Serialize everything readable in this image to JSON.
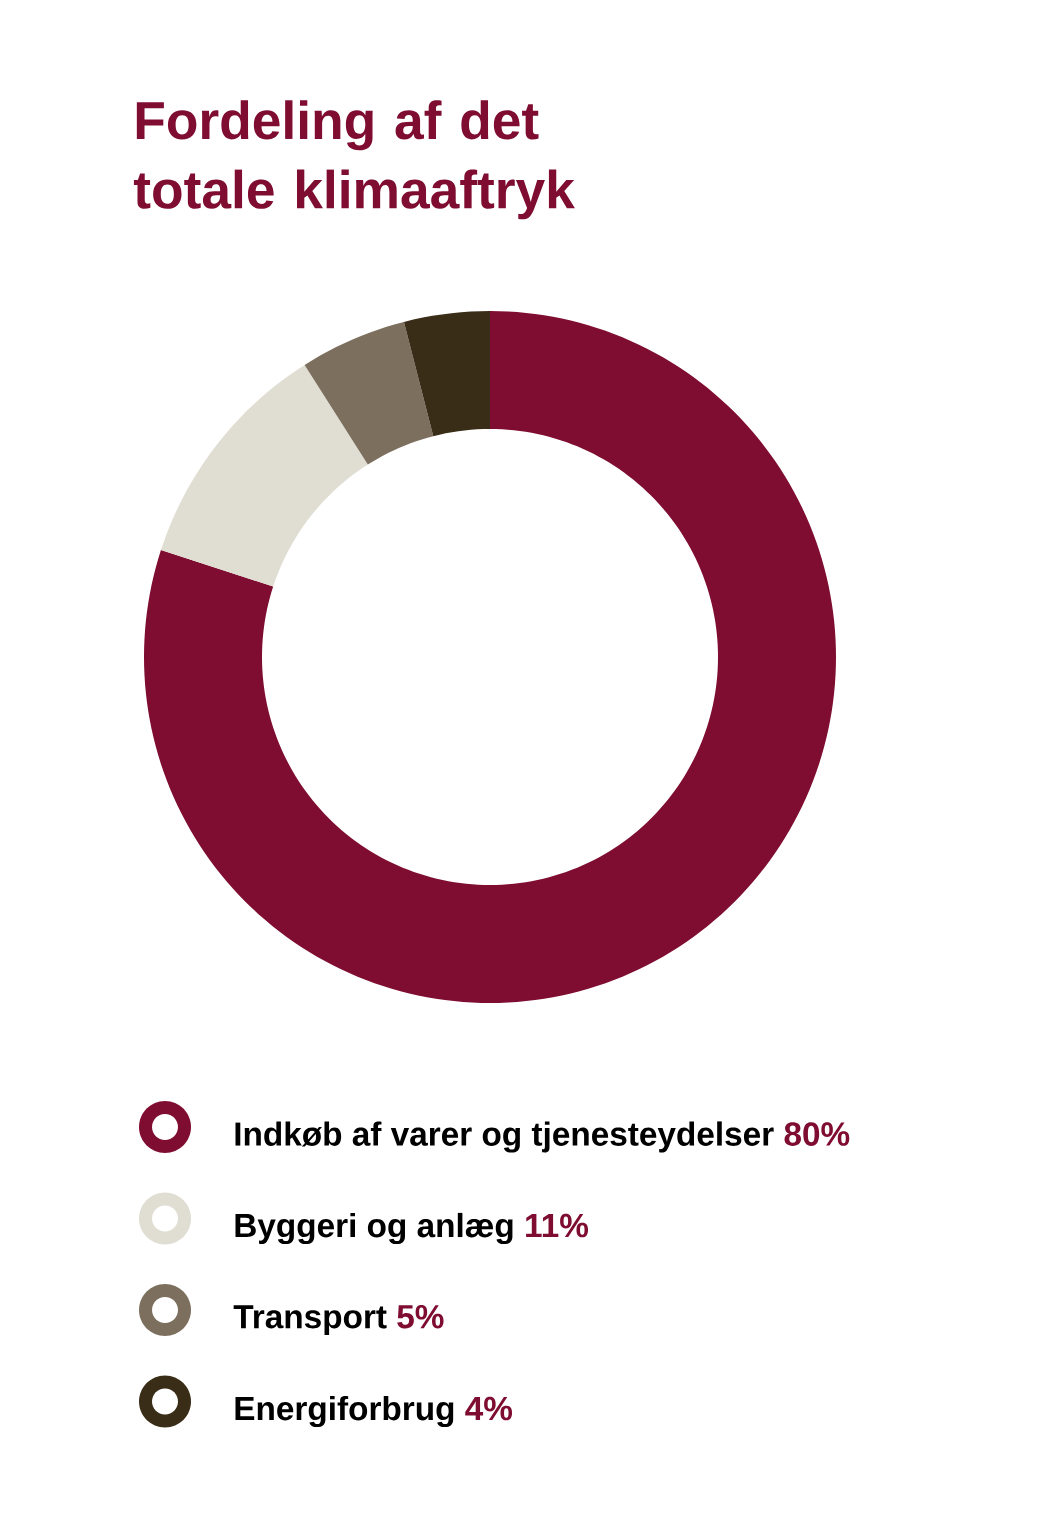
{
  "chart_data": {
    "type": "donut",
    "title": "Fordeling af det totale klimaaftryk",
    "categories": [
      "Indkøb af varer og tjenesteydelser",
      "Byggeri og anlæg",
      "Transport",
      "Energiforbrug"
    ],
    "values": [
      80,
      11,
      5,
      4
    ],
    "colors": [
      "#7f0c31",
      "#e0ded2",
      "#7c6f5e",
      "#3a2d18"
    ],
    "value_labels": [
      "80%",
      "11%",
      "5%",
      "4%"
    ],
    "legend": "bottom"
  }
}
